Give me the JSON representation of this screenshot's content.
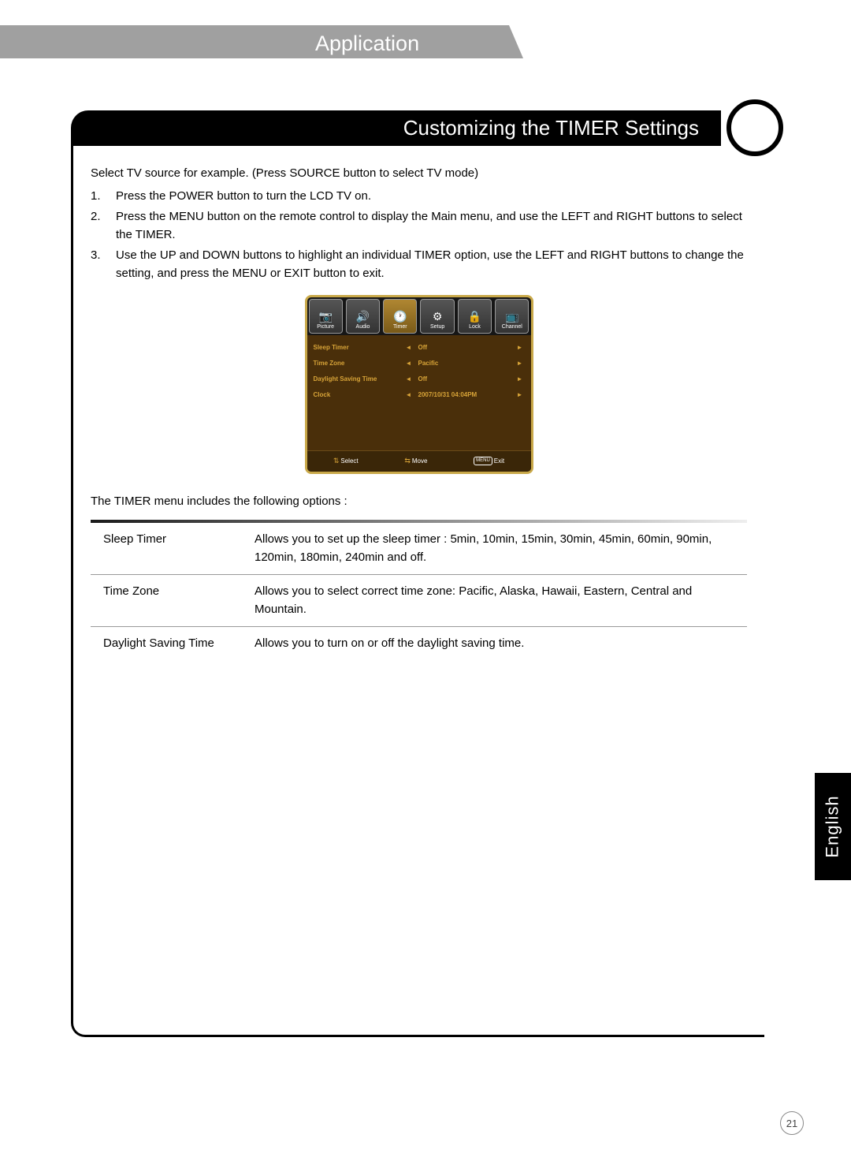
{
  "header": {
    "title": "Application"
  },
  "subtitle": "Customizing the TIMER Settings",
  "intro": "Select TV source for example. (Press SOURCE button to select TV mode)",
  "steps": [
    "Press the POWER button to turn the LCD TV on.",
    "Press the MENU button on the remote control to display the Main menu, and use the LEFT and RIGHT buttons to select the TIMER.",
    "Use the UP and DOWN buttons to highlight an individual TIMER option, use the LEFT and RIGHT buttons to change the setting, and press the MENU or EXIT button to exit."
  ],
  "osd": {
    "tabs": [
      {
        "label": "Picture",
        "icon": "📷"
      },
      {
        "label": "Audio",
        "icon": "🔊"
      },
      {
        "label": "Timer",
        "icon": "🕐",
        "selected": true
      },
      {
        "label": "Setup",
        "icon": "⚙"
      },
      {
        "label": "Lock",
        "icon": "🔒"
      },
      {
        "label": "Channel",
        "icon": "📺"
      }
    ],
    "rows": [
      {
        "label": "Sleep Timer",
        "value": "Off"
      },
      {
        "label": "Time Zone",
        "value": "Pacific"
      },
      {
        "label": "Daylight Saving Time",
        "value": "Off"
      },
      {
        "label": "Clock",
        "value": "2007/10/31 04:04PM"
      }
    ],
    "footer": {
      "select": "Select",
      "move": "Move",
      "exit": "Exit",
      "exit_btn": "MENU"
    }
  },
  "options_intro": "The TIMER menu includes the following options :",
  "options": [
    {
      "name": "Sleep Timer",
      "desc": "Allows you to set up the sleep timer : 5min, 10min, 15min, 30min, 45min, 60min, 90min, 120min, 180min, 240min and off."
    },
    {
      "name": "Time Zone",
      "desc": "Allows you to select correct time zone: Pacific, Alaska, Hawaii, Eastern, Central and Mountain."
    },
    {
      "name": "Daylight Saving Time",
      "desc": "Allows you to turn on or off the daylight saving time."
    }
  ],
  "language_tab": "English",
  "page_number": "21"
}
